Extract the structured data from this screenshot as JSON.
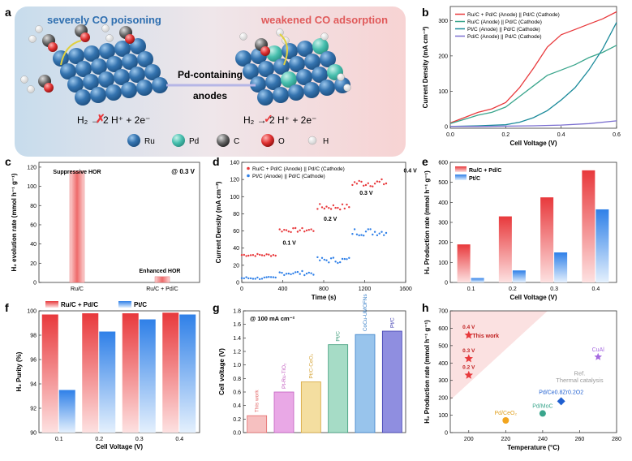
{
  "panel_letters": {
    "a": "a",
    "b": "b",
    "c": "c",
    "d": "d",
    "e": "e",
    "f": "f",
    "g": "g",
    "h": "h"
  },
  "colors": {
    "red": "#e8393c",
    "blue": "#2f80e8",
    "green": "#3aa58c",
    "teal": "#1a8a9a",
    "ru": "#2b6aa7",
    "pd": "#48c0b0",
    "panel_a_left": "#cfe1ef",
    "panel_a_right": "#f6d7d7"
  },
  "schematic": {
    "left_title": "severely CO poisoning",
    "right_title": "weakened CO adsorption",
    "middle_label_1": "Pd-containing",
    "middle_label_2": "anodes",
    "left_equation": "H₂ → 2 H⁺ + 2e⁻",
    "right_equation": "H₂ → 2 H⁺ + 2e⁻",
    "legend": [
      "Ru",
      "Pd",
      "C",
      "O",
      "H"
    ]
  },
  "chart_data": [
    {
      "panel": "b",
      "type": "line",
      "title": "",
      "xlabel": "Cell Voltage (V)",
      "ylabel": "Current Density (mA cm⁻²)",
      "xlim": [
        0.0,
        0.6
      ],
      "ylim": [
        -5,
        340
      ],
      "xticks": [
        "0.0",
        "0.2",
        "0.4",
        "0.6"
      ],
      "yticks": [
        "0",
        "100",
        "200",
        "300"
      ],
      "legend_position": "top-left",
      "series": [
        {
          "name": "Ru/C + Pd/C (Anode) || Pd/C (Cathode)",
          "color": "#e8393c",
          "x": [
            0,
            0.05,
            0.1,
            0.15,
            0.2,
            0.25,
            0.3,
            0.35,
            0.4,
            0.45,
            0.5,
            0.55,
            0.6
          ],
          "y": [
            10,
            25,
            40,
            50,
            68,
            110,
            165,
            225,
            260,
            275,
            290,
            305,
            325
          ]
        },
        {
          "name": "Ru/C (Anode) || Pd/C (Cathode)",
          "color": "#3aa58c",
          "x": [
            0,
            0.05,
            0.1,
            0.15,
            0.2,
            0.25,
            0.3,
            0.35,
            0.4,
            0.45,
            0.5,
            0.55,
            0.6
          ],
          "y": [
            8,
            20,
            32,
            40,
            55,
            85,
            115,
            145,
            160,
            175,
            195,
            210,
            230
          ]
        },
        {
          "name": "Pt/C (Anode) || Pd/C (Cathode)",
          "color": "#1a8a9a",
          "x": [
            0,
            0.1,
            0.2,
            0.25,
            0.3,
            0.35,
            0.4,
            0.45,
            0.5,
            0.55,
            0.6
          ],
          "y": [
            0,
            2,
            5,
            12,
            25,
            45,
            75,
            110,
            160,
            220,
            295
          ]
        },
        {
          "name": "Pd/C (Anode) || Pd/C (Cathode)",
          "color": "#7b6fd0",
          "x": [
            0,
            0.1,
            0.2,
            0.3,
            0.4,
            0.5,
            0.6
          ],
          "y": [
            0,
            0,
            1,
            2,
            4,
            8,
            16
          ]
        }
      ]
    },
    {
      "panel": "c",
      "type": "bar",
      "xlabel": "",
      "ylabel": "H₂ evolution rate (mmol h⁻¹ g⁻¹)",
      "ylim": [
        0,
        125
      ],
      "yticks": [
        "0",
        "20",
        "40",
        "60",
        "80",
        "100",
        "120"
      ],
      "categories": [
        "Ru/C",
        "Ru/C + Pd/C"
      ],
      "values": [
        116,
        6
      ],
      "annotations": [
        "Suppressive HOR",
        "Enhanced HOR",
        "@ 0.3 V"
      ]
    },
    {
      "panel": "d",
      "type": "scatter",
      "xlabel": "Time (s)",
      "ylabel": "Current Density (mA cm⁻²)",
      "xlim": [
        0,
        1600
      ],
      "ylim": [
        0,
        140
      ],
      "xticks": [
        "0",
        "400",
        "800",
        "1200",
        "1600"
      ],
      "yticks": [
        "0",
        "20",
        "40",
        "60",
        "80",
        "100",
        "120",
        "140"
      ],
      "legend_position": "top-left",
      "series": [
        {
          "name": "Ru/C + Pd/C (Anode) || Pd/C (Cathode)",
          "color": "#e8393c",
          "segments": [
            {
              "x0": 0,
              "x1": 350,
              "y": 32
            },
            {
              "x0": 370,
              "x1": 720,
              "y": 61
            },
            {
              "x0": 740,
              "x1": 1060,
              "y": 88
            },
            {
              "x0": 1080,
              "x1": 1420,
              "y": 116
            }
          ]
        },
        {
          "name": "Pt/C (Anode) || Pd/C (Cathode)",
          "color": "#2f80e8",
          "segments": [
            {
              "x0": 0,
              "x1": 350,
              "y": 5
            },
            {
              "x0": 370,
              "x1": 720,
              "y": 11
            },
            {
              "x0": 740,
              "x1": 1060,
              "y": 26
            },
            {
              "x0": 1080,
              "x1": 1420,
              "y": 59
            }
          ]
        }
      ],
      "annotations": [
        "0.1 V",
        "0.2 V",
        "0.3 V",
        "0.4 V"
      ]
    },
    {
      "panel": "e",
      "type": "bar",
      "xlabel": "Cell Voltage (V)",
      "ylabel": "H₂ Production rate (mmol h⁻¹ g⁻¹)",
      "ylim": [
        0,
        600
      ],
      "yticks": [
        "0",
        "100",
        "200",
        "300",
        "400",
        "500",
        "600"
      ],
      "categories": [
        "0.1",
        "0.2",
        "0.3",
        "0.4"
      ],
      "legend_position": "top-left",
      "series": [
        {
          "name": "Ru/C + Pd/C",
          "color": "#e8393c",
          "values": [
            190,
            330,
            425,
            560
          ]
        },
        {
          "name": "Pt/C",
          "color": "#2f80e8",
          "values": [
            22,
            60,
            150,
            365
          ]
        }
      ]
    },
    {
      "panel": "f",
      "type": "bar",
      "xlabel": "Cell Voltage (V)",
      "ylabel": "H₂ Purity (%)",
      "ylim": [
        90,
        100
      ],
      "yticks": [
        "90",
        "92",
        "94",
        "96",
        "98",
        "100"
      ],
      "categories": [
        "0.1",
        "0.2",
        "0.3",
        "0.4"
      ],
      "legend_position": "top",
      "series": [
        {
          "name": "Ru/C + Pd/C",
          "color": "#e8393c",
          "values": [
            99.7,
            99.8,
            99.8,
            99.85
          ]
        },
        {
          "name": "Pt/C",
          "color": "#2f80e8",
          "values": [
            93.5,
            98.3,
            99.3,
            99.7
          ]
        }
      ]
    },
    {
      "panel": "g",
      "type": "bar",
      "xlabel": "",
      "ylabel": "Cell voltage (V)",
      "ylim": [
        0.0,
        1.8
      ],
      "yticks": [
        "0.0",
        "0.2",
        "0.4",
        "0.6",
        "0.8",
        "1.0",
        "1.2",
        "1.4",
        "1.6",
        "1.8"
      ],
      "categories": [
        "This work",
        "Pt-Ru-TiO₂",
        "Pt/C-CeO₂",
        "Pt/C",
        "CoCu-UMOFNs",
        "Pt/C"
      ],
      "values": [
        0.25,
        0.6,
        0.75,
        1.3,
        1.45,
        1.5
      ],
      "annotations": [
        "@ 100 mA cm⁻²"
      ]
    },
    {
      "panel": "h",
      "type": "scatter",
      "xlabel": "Temperature (°C)",
      "ylabel": "H₂ Production rate (mmol h⁻¹ g⁻¹)",
      "xlim": [
        190,
        280
      ],
      "ylim": [
        0,
        700
      ],
      "xticks": [
        "200",
        "220",
        "240",
        "260",
        "280"
      ],
      "yticks": [
        "0",
        "100",
        "200",
        "300",
        "400",
        "500",
        "600",
        "700"
      ],
      "series": [
        {
          "name": "This work",
          "color": "#e8393c",
          "marker": "star",
          "points": [
            {
              "x": 200,
              "y": 560,
              "label": "0.4 V"
            },
            {
              "x": 200,
              "y": 425,
              "label": "0.3 V"
            },
            {
              "x": 200,
              "y": 330,
              "label": "0.2 V"
            }
          ]
        },
        {
          "name": "CuAl",
          "color": "#a569e0",
          "marker": "pentagon",
          "points": [
            {
              "x": 270,
              "y": 435
            }
          ]
        },
        {
          "name": "Pd/Ce0.8Zr0.2O2",
          "color": "#1f5fd0",
          "marker": "diamond",
          "points": [
            {
              "x": 250,
              "y": 180
            }
          ]
        },
        {
          "name": "Pd/MoC",
          "color": "#3aa58c",
          "marker": "circle",
          "points": [
            {
              "x": 240,
              "y": 110
            }
          ]
        },
        {
          "name": "Pd/CeO₂",
          "color": "#f2a51e",
          "marker": "circle",
          "points": [
            {
              "x": 220,
              "y": 70
            }
          ]
        }
      ],
      "annotations": [
        "Ref.",
        "Thermal catalysis"
      ]
    }
  ]
}
